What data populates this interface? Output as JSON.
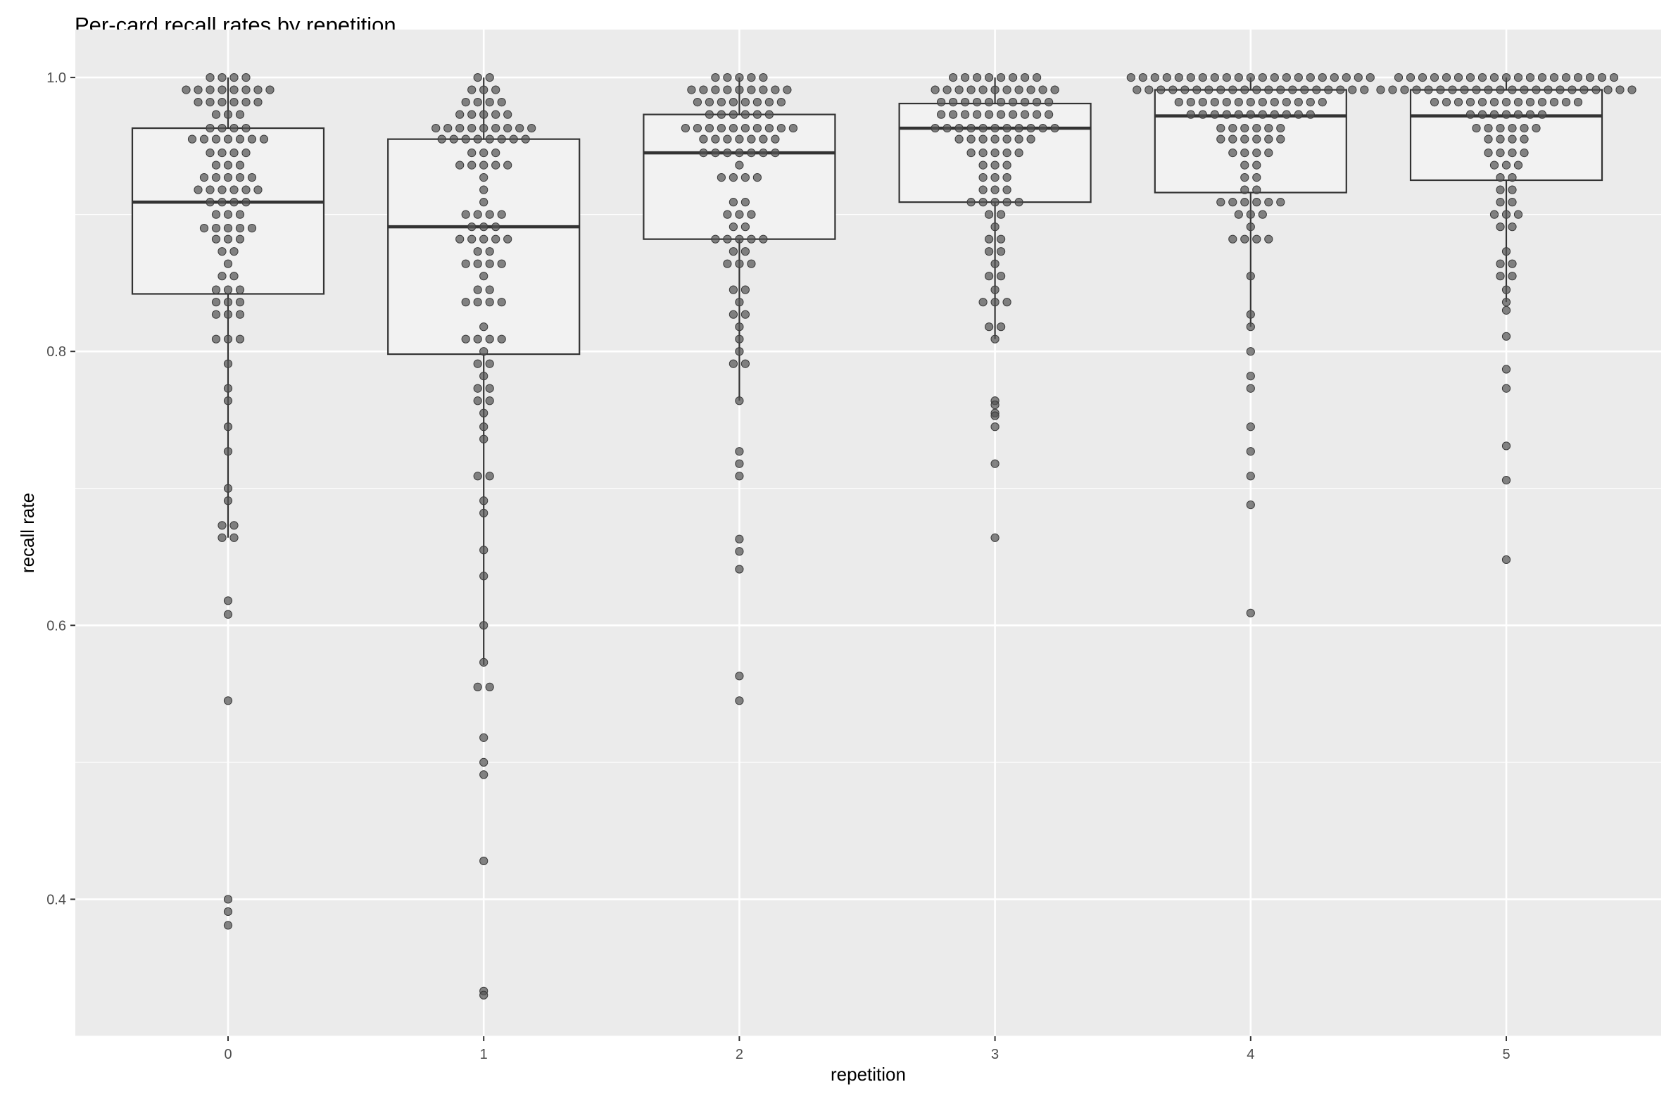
{
  "chart_data": {
    "type": "box",
    "title": "Per-card recall rates by repetition",
    "xlabel": "repetition",
    "ylabel": "recall rate",
    "categories": [
      "0",
      "1",
      "2",
      "3",
      "4",
      "5"
    ],
    "y_ticks": [
      0.4,
      0.6,
      0.8,
      1.0
    ],
    "y_tick_labels": [
      "0.4",
      "0.6",
      "0.8",
      "1.0"
    ],
    "ylim": [
      0.3,
      1.035
    ],
    "grid": true,
    "colors": {
      "panel_bg": "#ebebeb",
      "grid": "#ffffff",
      "box_fill": "#f2f2f2",
      "box_line": "#333333",
      "point": "#555555"
    },
    "boxes": [
      {
        "category": "0",
        "q1": 0.842,
        "median": 0.909,
        "q3": 0.963,
        "whisker_low": 0.664,
        "whisker_high": 1.0,
        "outliers": [
          0.618,
          0.608,
          0.545,
          0.4,
          0.391,
          0.381
        ]
      },
      {
        "category": "1",
        "q1": 0.798,
        "median": 0.891,
        "q3": 0.955,
        "whisker_low": 0.571,
        "whisker_high": 1.0,
        "outliers": [
          0.555,
          0.555,
          0.518,
          0.5,
          0.491,
          0.428,
          0.333,
          0.33
        ]
      },
      {
        "category": "2",
        "q1": 0.882,
        "median": 0.945,
        "q3": 0.973,
        "whisker_low": 0.764,
        "whisker_high": 1.0,
        "outliers": [
          0.727,
          0.718,
          0.709,
          0.663,
          0.654,
          0.641,
          0.563,
          0.545
        ]
      },
      {
        "category": "3",
        "q1": 0.909,
        "median": 0.963,
        "q3": 0.981,
        "whisker_low": 0.809,
        "whisker_high": 1.0,
        "outliers": [
          0.764,
          0.761,
          0.755,
          0.753,
          0.745,
          0.718,
          0.664
        ]
      },
      {
        "category": "4",
        "q1": 0.916,
        "median": 0.972,
        "q3": 0.991,
        "whisker_low": 0.818,
        "whisker_high": 1.0,
        "outliers": [
          0.8,
          0.782,
          0.773,
          0.745,
          0.727,
          0.709,
          0.688,
          0.609
        ]
      },
      {
        "category": "5",
        "q1": 0.925,
        "median": 0.972,
        "q3": 0.991,
        "whisker_low": 0.836,
        "whisker_high": 1.0,
        "outliers": [
          0.83,
          0.811,
          0.787,
          0.773,
          0.731,
          0.706,
          0.648
        ]
      }
    ],
    "points": [
      {
        "category": "0",
        "values": [
          1.0,
          1.0,
          1.0,
          1.0,
          0.991,
          0.991,
          0.991,
          0.991,
          0.991,
          0.991,
          0.991,
          0.991,
          0.982,
          0.982,
          0.982,
          0.982,
          0.982,
          0.982,
          0.973,
          0.973,
          0.973,
          0.963,
          0.963,
          0.963,
          0.963,
          0.955,
          0.955,
          0.955,
          0.955,
          0.955,
          0.955,
          0.955,
          0.945,
          0.945,
          0.945,
          0.945,
          0.936,
          0.936,
          0.936,
          0.927,
          0.927,
          0.927,
          0.927,
          0.927,
          0.918,
          0.918,
          0.918,
          0.918,
          0.918,
          0.918,
          0.909,
          0.909,
          0.909,
          0.909,
          0.9,
          0.9,
          0.9,
          0.89,
          0.89,
          0.89,
          0.89,
          0.89,
          0.882,
          0.882,
          0.882,
          0.873,
          0.873,
          0.864,
          0.855,
          0.855,
          0.845,
          0.845,
          0.845,
          0.836,
          0.836,
          0.836,
          0.827,
          0.827,
          0.827,
          0.809,
          0.809,
          0.809,
          0.791,
          0.773,
          0.764,
          0.745,
          0.727,
          0.7,
          0.691,
          0.673,
          0.673,
          0.664,
          0.664,
          0.618,
          0.608,
          0.545,
          0.4,
          0.391,
          0.381
        ]
      },
      {
        "category": "1",
        "values": [
          1.0,
          1.0,
          0.991,
          0.991,
          0.991,
          0.982,
          0.982,
          0.982,
          0.982,
          0.973,
          0.973,
          0.973,
          0.973,
          0.973,
          0.963,
          0.963,
          0.963,
          0.963,
          0.963,
          0.963,
          0.963,
          0.963,
          0.963,
          0.955,
          0.955,
          0.955,
          0.955,
          0.955,
          0.955,
          0.955,
          0.955,
          0.945,
          0.945,
          0.945,
          0.936,
          0.936,
          0.936,
          0.936,
          0.936,
          0.927,
          0.918,
          0.909,
          0.9,
          0.9,
          0.9,
          0.9,
          0.891,
          0.891,
          0.891,
          0.882,
          0.882,
          0.882,
          0.882,
          0.882,
          0.873,
          0.873,
          0.864,
          0.864,
          0.864,
          0.864,
          0.855,
          0.845,
          0.845,
          0.836,
          0.836,
          0.836,
          0.836,
          0.818,
          0.809,
          0.809,
          0.809,
          0.809,
          0.8,
          0.791,
          0.791,
          0.782,
          0.773,
          0.773,
          0.764,
          0.764,
          0.755,
          0.745,
          0.736,
          0.709,
          0.709,
          0.691,
          0.682,
          0.655,
          0.636,
          0.6,
          0.573,
          0.555,
          0.555,
          0.518,
          0.5,
          0.491,
          0.428,
          0.333,
          0.33
        ]
      },
      {
        "category": "2",
        "values": [
          1.0,
          1.0,
          1.0,
          1.0,
          1.0,
          0.991,
          0.991,
          0.991,
          0.991,
          0.991,
          0.991,
          0.991,
          0.991,
          0.991,
          0.982,
          0.982,
          0.982,
          0.982,
          0.982,
          0.982,
          0.982,
          0.982,
          0.973,
          0.973,
          0.973,
          0.973,
          0.973,
          0.973,
          0.963,
          0.963,
          0.963,
          0.963,
          0.963,
          0.963,
          0.963,
          0.963,
          0.963,
          0.963,
          0.955,
          0.955,
          0.955,
          0.955,
          0.955,
          0.955,
          0.955,
          0.945,
          0.945,
          0.945,
          0.945,
          0.945,
          0.945,
          0.945,
          0.936,
          0.927,
          0.927,
          0.927,
          0.927,
          0.909,
          0.909,
          0.9,
          0.9,
          0.9,
          0.891,
          0.891,
          0.882,
          0.882,
          0.882,
          0.882,
          0.882,
          0.873,
          0.873,
          0.864,
          0.864,
          0.864,
          0.845,
          0.845,
          0.836,
          0.827,
          0.827,
          0.818,
          0.809,
          0.8,
          0.791,
          0.791,
          0.764,
          0.727,
          0.718,
          0.709,
          0.663,
          0.654,
          0.641,
          0.563,
          0.545
        ]
      },
      {
        "category": "3",
        "values": [
          1.0,
          1.0,
          1.0,
          1.0,
          1.0,
          1.0,
          1.0,
          1.0,
          0.991,
          0.991,
          0.991,
          0.991,
          0.991,
          0.991,
          0.991,
          0.991,
          0.991,
          0.991,
          0.991,
          0.982,
          0.982,
          0.982,
          0.982,
          0.982,
          0.982,
          0.982,
          0.982,
          0.982,
          0.982,
          0.973,
          0.973,
          0.973,
          0.973,
          0.973,
          0.973,
          0.973,
          0.973,
          0.973,
          0.973,
          0.963,
          0.963,
          0.963,
          0.963,
          0.963,
          0.963,
          0.963,
          0.963,
          0.963,
          0.963,
          0.963,
          0.955,
          0.955,
          0.955,
          0.955,
          0.955,
          0.955,
          0.955,
          0.945,
          0.945,
          0.945,
          0.945,
          0.945,
          0.936,
          0.936,
          0.936,
          0.927,
          0.927,
          0.927,
          0.918,
          0.918,
          0.918,
          0.909,
          0.909,
          0.909,
          0.909,
          0.909,
          0.9,
          0.9,
          0.891,
          0.882,
          0.882,
          0.873,
          0.873,
          0.864,
          0.855,
          0.855,
          0.845,
          0.836,
          0.836,
          0.836,
          0.818,
          0.818,
          0.809,
          0.764,
          0.761,
          0.755,
          0.753,
          0.745,
          0.718,
          0.664
        ]
      },
      {
        "category": "4",
        "values": [
          1.0,
          1.0,
          1.0,
          1.0,
          1.0,
          1.0,
          1.0,
          1.0,
          1.0,
          1.0,
          1.0,
          1.0,
          1.0,
          1.0,
          1.0,
          1.0,
          1.0,
          1.0,
          1.0,
          1.0,
          1.0,
          0.991,
          0.991,
          0.991,
          0.991,
          0.991,
          0.991,
          0.991,
          0.991,
          0.991,
          0.991,
          0.991,
          0.991,
          0.991,
          0.991,
          0.991,
          0.991,
          0.991,
          0.991,
          0.991,
          0.991,
          0.982,
          0.982,
          0.982,
          0.982,
          0.982,
          0.982,
          0.982,
          0.982,
          0.982,
          0.982,
          0.982,
          0.982,
          0.982,
          0.973,
          0.973,
          0.973,
          0.973,
          0.973,
          0.973,
          0.973,
          0.973,
          0.973,
          0.973,
          0.973,
          0.963,
          0.963,
          0.963,
          0.963,
          0.963,
          0.963,
          0.955,
          0.955,
          0.955,
          0.955,
          0.955,
          0.955,
          0.945,
          0.945,
          0.945,
          0.945,
          0.936,
          0.936,
          0.927,
          0.927,
          0.918,
          0.918,
          0.909,
          0.909,
          0.909,
          0.909,
          0.909,
          0.909,
          0.9,
          0.9,
          0.9,
          0.891,
          0.882,
          0.882,
          0.882,
          0.882,
          0.855,
          0.827,
          0.818,
          0.8,
          0.782,
          0.773,
          0.745,
          0.727,
          0.709,
          0.688,
          0.609
        ]
      },
      {
        "category": "5",
        "values": [
          1.0,
          1.0,
          1.0,
          1.0,
          1.0,
          1.0,
          1.0,
          1.0,
          1.0,
          1.0,
          1.0,
          1.0,
          1.0,
          1.0,
          1.0,
          1.0,
          1.0,
          1.0,
          1.0,
          0.991,
          0.991,
          0.991,
          0.991,
          0.991,
          0.991,
          0.991,
          0.991,
          0.991,
          0.991,
          0.991,
          0.991,
          0.991,
          0.991,
          0.991,
          0.991,
          0.991,
          0.991,
          0.991,
          0.991,
          0.991,
          0.991,
          0.982,
          0.982,
          0.982,
          0.982,
          0.982,
          0.982,
          0.982,
          0.982,
          0.982,
          0.982,
          0.982,
          0.982,
          0.982,
          0.973,
          0.973,
          0.973,
          0.973,
          0.973,
          0.973,
          0.973,
          0.963,
          0.963,
          0.963,
          0.963,
          0.963,
          0.963,
          0.955,
          0.955,
          0.955,
          0.955,
          0.945,
          0.945,
          0.945,
          0.945,
          0.936,
          0.936,
          0.936,
          0.927,
          0.927,
          0.918,
          0.918,
          0.909,
          0.909,
          0.9,
          0.9,
          0.9,
          0.891,
          0.891,
          0.873,
          0.864,
          0.864,
          0.855,
          0.855,
          0.845,
          0.836,
          0.83,
          0.811,
          0.787,
          0.773,
          0.731,
          0.706,
          0.648
        ]
      }
    ]
  }
}
